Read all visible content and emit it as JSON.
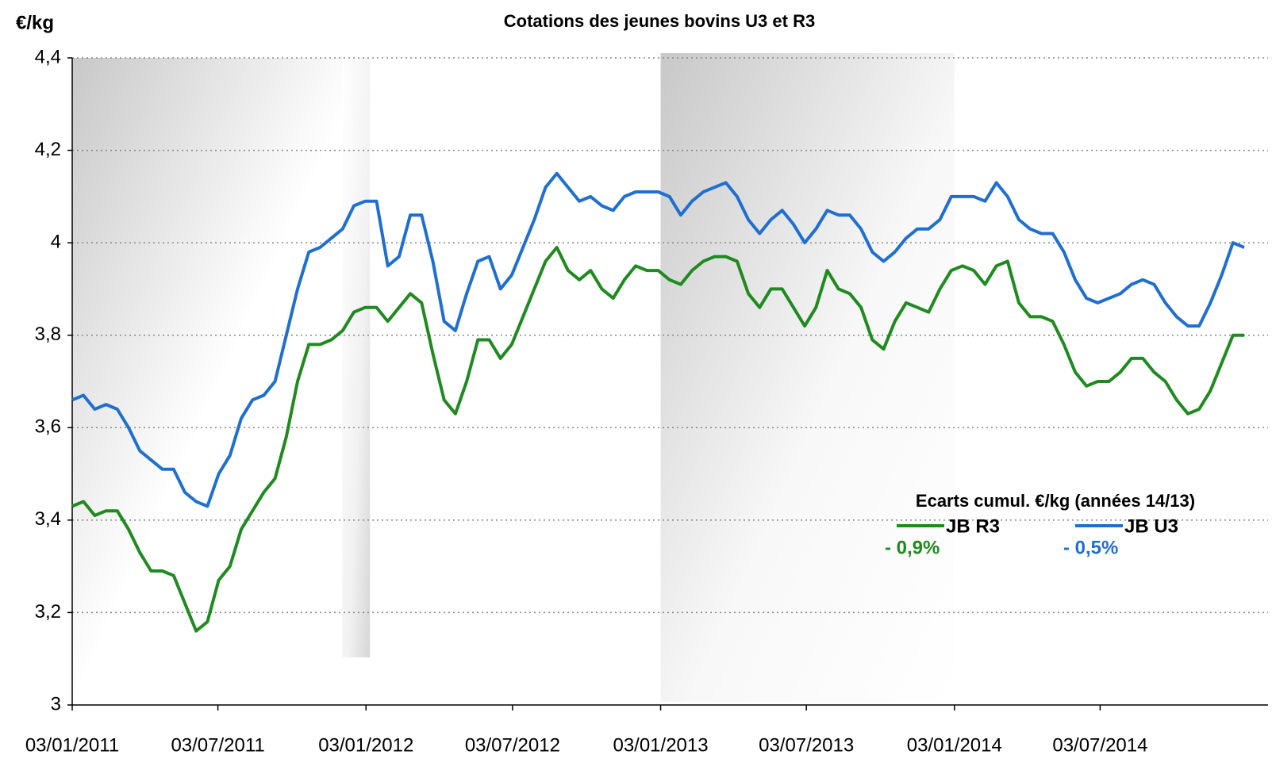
{
  "chart_data": {
    "type": "line",
    "title": "Cotations des jeunes bovins U3 et R3",
    "y_label": "€/kg",
    "annotation": "Ecarts cumul. €/kg (années 14/13)",
    "x": [
      "03/01/2011",
      "17/01/2011",
      "31/01/2011",
      "14/02/2011",
      "28/02/2011",
      "14/03/2011",
      "28/03/2011",
      "11/04/2011",
      "25/04/2011",
      "09/05/2011",
      "23/05/2011",
      "06/06/2011",
      "20/06/2011",
      "04/07/2011",
      "18/07/2011",
      "01/08/2011",
      "15/08/2011",
      "29/08/2011",
      "12/09/2011",
      "26/09/2011",
      "10/10/2011",
      "24/10/2011",
      "07/11/2011",
      "21/11/2011",
      "05/12/2011",
      "19/12/2011",
      "02/01/2012",
      "16/01/2012",
      "30/01/2012",
      "13/02/2012",
      "27/02/2012",
      "12/03/2012",
      "26/03/2012",
      "09/04/2012",
      "23/04/2012",
      "07/05/2012",
      "21/05/2012",
      "04/06/2012",
      "18/06/2012",
      "02/07/2012",
      "16/07/2012",
      "30/07/2012",
      "13/08/2012",
      "27/08/2012",
      "10/09/2012",
      "24/09/2012",
      "08/10/2012",
      "22/10/2012",
      "05/11/2012",
      "19/11/2012",
      "03/12/2012",
      "17/12/2012",
      "31/12/2012",
      "14/01/2013",
      "28/01/2013",
      "11/02/2013",
      "25/02/2013",
      "11/03/2013",
      "25/03/2013",
      "08/04/2013",
      "22/04/2013",
      "06/05/2013",
      "20/05/2013",
      "03/06/2013",
      "17/06/2013",
      "01/07/2013",
      "15/07/2013",
      "29/07/2013",
      "12/08/2013",
      "26/08/2013",
      "09/09/2013",
      "23/09/2013",
      "07/10/2013",
      "21/10/2013",
      "04/11/2013",
      "18/11/2013",
      "02/12/2013",
      "16/12/2013",
      "30/12/2013",
      "13/01/2014",
      "27/01/2014",
      "10/02/2014",
      "24/02/2014",
      "10/03/2014",
      "24/03/2014",
      "07/04/2014",
      "21/04/2014",
      "05/05/2014",
      "19/05/2014",
      "02/06/2014",
      "16/06/2014",
      "30/06/2014",
      "14/07/2014",
      "28/07/2014",
      "11/08/2014",
      "25/08/2014",
      "08/09/2014",
      "22/09/2014",
      "06/10/2014",
      "20/10/2014",
      "03/11/2014",
      "17/11/2014",
      "01/12/2014",
      "15/12/2014",
      "29/12/2014"
    ],
    "series": [
      {
        "name": "JB R3",
        "color": "#1f8a1f",
        "change_label": "- 0,9%",
        "values": [
          3.43,
          3.44,
          3.41,
          3.42,
          3.42,
          3.38,
          3.33,
          3.29,
          3.29,
          3.28,
          3.22,
          3.16,
          3.18,
          3.27,
          3.3,
          3.38,
          3.42,
          3.46,
          3.49,
          3.58,
          3.7,
          3.78,
          3.78,
          3.79,
          3.81,
          3.85,
          3.86,
          3.86,
          3.83,
          3.86,
          3.89,
          3.87,
          3.76,
          3.66,
          3.63,
          3.7,
          3.79,
          3.79,
          3.75,
          3.78,
          3.84,
          3.9,
          3.96,
          3.99,
          3.94,
          3.92,
          3.94,
          3.9,
          3.88,
          3.92,
          3.95,
          3.94,
          3.94,
          3.92,
          3.91,
          3.94,
          3.96,
          3.97,
          3.97,
          3.96,
          3.89,
          3.86,
          3.9,
          3.9,
          3.86,
          3.82,
          3.86,
          3.94,
          3.9,
          3.89,
          3.86,
          3.79,
          3.77,
          3.83,
          3.87,
          3.86,
          3.85,
          3.9,
          3.94,
          3.95,
          3.94,
          3.91,
          3.95,
          3.96,
          3.87,
          3.84,
          3.84,
          3.83,
          3.78,
          3.72,
          3.69,
          3.7,
          3.7,
          3.72,
          3.75,
          3.75,
          3.72,
          3.7,
          3.66,
          3.63,
          3.64,
          3.68,
          3.74,
          3.8,
          3.8
        ]
      },
      {
        "name": "JB U3",
        "color": "#1f6fd0",
        "change_label": "- 0,5%",
        "values": [
          3.66,
          3.67,
          3.64,
          3.65,
          3.64,
          3.6,
          3.55,
          3.53,
          3.51,
          3.51,
          3.46,
          3.44,
          3.43,
          3.5,
          3.54,
          3.62,
          3.66,
          3.67,
          3.7,
          3.8,
          3.9,
          3.98,
          3.99,
          4.01,
          4.03,
          4.08,
          4.09,
          4.09,
          3.95,
          3.97,
          4.06,
          4.06,
          3.96,
          3.83,
          3.81,
          3.89,
          3.96,
          3.97,
          3.9,
          3.93,
          3.99,
          4.05,
          4.12,
          4.15,
          4.12,
          4.09,
          4.1,
          4.08,
          4.07,
          4.1,
          4.11,
          4.11,
          4.11,
          4.1,
          4.06,
          4.09,
          4.11,
          4.12,
          4.13,
          4.1,
          4.05,
          4.02,
          4.05,
          4.07,
          4.04,
          4.0,
          4.03,
          4.07,
          4.06,
          4.06,
          4.03,
          3.98,
          3.96,
          3.98,
          4.01,
          4.03,
          4.03,
          4.05,
          4.1,
          4.1,
          4.1,
          4.09,
          4.13,
          4.1,
          4.05,
          4.03,
          4.02,
          4.02,
          3.98,
          3.92,
          3.88,
          3.87,
          3.88,
          3.89,
          3.91,
          3.92,
          3.91,
          3.87,
          3.84,
          3.82,
          3.82,
          3.87,
          3.93,
          4.0,
          3.99
        ]
      }
    ],
    "xlim": [
      "03/01/2011",
      "29/12/2014"
    ],
    "xticks": [
      "03/01/2011",
      "03/07/2011",
      "03/01/2012",
      "03/07/2012",
      "03/01/2013",
      "03/07/2013",
      "03/01/2014",
      "03/07/2014"
    ],
    "ylim": [
      3,
      4.4
    ],
    "yticks": [
      3,
      {
        "value": 3.2,
        "label": "3,2"
      },
      {
        "value": 3.4,
        "label": "3,4"
      },
      {
        "value": 3.6,
        "label": "3,6"
      },
      {
        "value": 3.8,
        "label": "3,8"
      },
      4,
      {
        "value": 4.2,
        "label": "4,2"
      },
      {
        "value": 4.4,
        "label": "4,4"
      }
    ],
    "grid": true
  }
}
